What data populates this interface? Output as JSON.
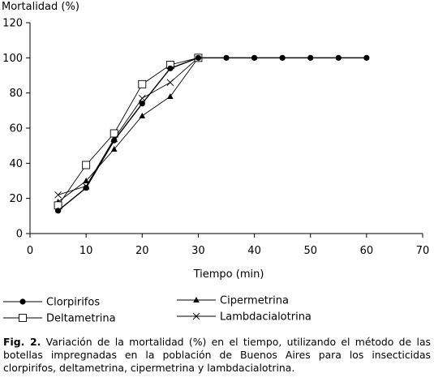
{
  "chart_data": {
    "type": "line",
    "ylabel": "Mortalidad (%)",
    "xlabel": "Tiempo (min)",
    "xlim": [
      0,
      70
    ],
    "ylim": [
      0,
      120
    ],
    "xticks": [
      0,
      10,
      20,
      30,
      40,
      50,
      60,
      70
    ],
    "yticks": [
      0,
      20,
      40,
      60,
      80,
      100,
      120
    ],
    "grid": false,
    "legend_position": "bottom",
    "series": [
      {
        "name": "Clorpirifos",
        "marker": "filled-circle",
        "x": [
          5,
          10,
          15,
          20,
          25,
          30,
          35,
          40,
          45,
          50,
          55,
          60
        ],
        "y": [
          13,
          26,
          53,
          74,
          94,
          100,
          100,
          100,
          100,
          100,
          100,
          100
        ]
      },
      {
        "name": "Deltametrina",
        "marker": "open-square",
        "x": [
          5,
          10,
          15,
          20,
          25,
          30
        ],
        "y": [
          16,
          39,
          57,
          85,
          96,
          100
        ]
      },
      {
        "name": "Cipermetrina",
        "marker": "filled-triangle",
        "x": [
          5,
          10,
          15,
          20,
          25,
          30
        ],
        "y": [
          18,
          30,
          48,
          67,
          78,
          100
        ]
      },
      {
        "name": "Lambdacialotrina",
        "marker": "cross",
        "x": [
          5,
          10,
          15,
          20,
          25,
          30
        ],
        "y": [
          22,
          27,
          54,
          77,
          86,
          100
        ]
      }
    ]
  },
  "caption": {
    "label": "Fig. 2.",
    "text": " Variación de la mortalidad (%) en el tiempo, utilizando el método de las botellas impregnadas en la población de Buenos Aires para los insecticidas clorpirifos, deltametrina, cipermetrina y lambdacialotrina."
  }
}
